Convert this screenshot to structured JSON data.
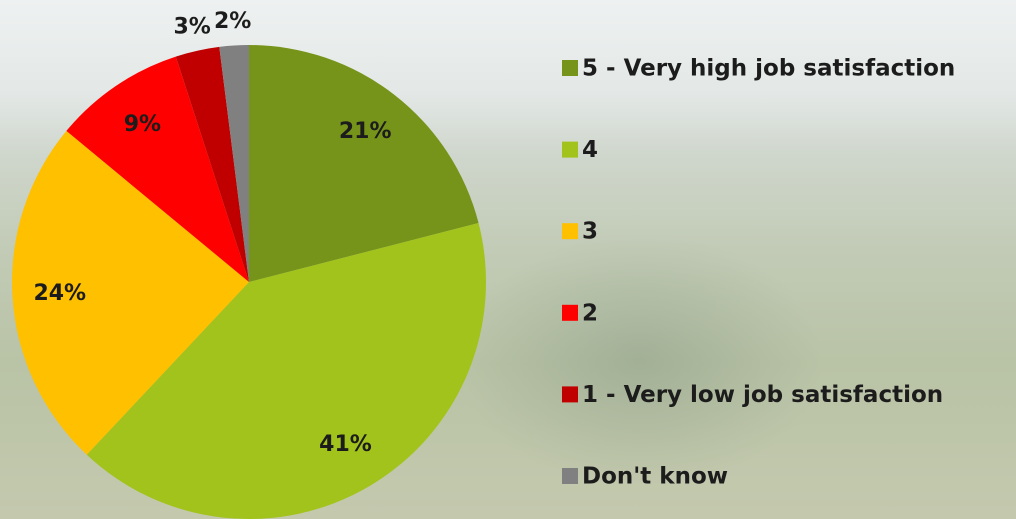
{
  "chart_data": {
    "type": "pie",
    "categories": [
      "5 - Very high job satisfaction",
      "4",
      "3",
      "2",
      "1 - Very low job satisfaction",
      "Don't know"
    ],
    "values": [
      21,
      41,
      24,
      9,
      3,
      2
    ],
    "value_labels": [
      "21%",
      "41%",
      "24%",
      "9%",
      "3%",
      "2%"
    ],
    "colors": [
      "#77941a",
      "#a2c31b",
      "#ffc000",
      "#ff0000",
      "#c00000",
      "#808080"
    ],
    "legend": "right"
  }
}
